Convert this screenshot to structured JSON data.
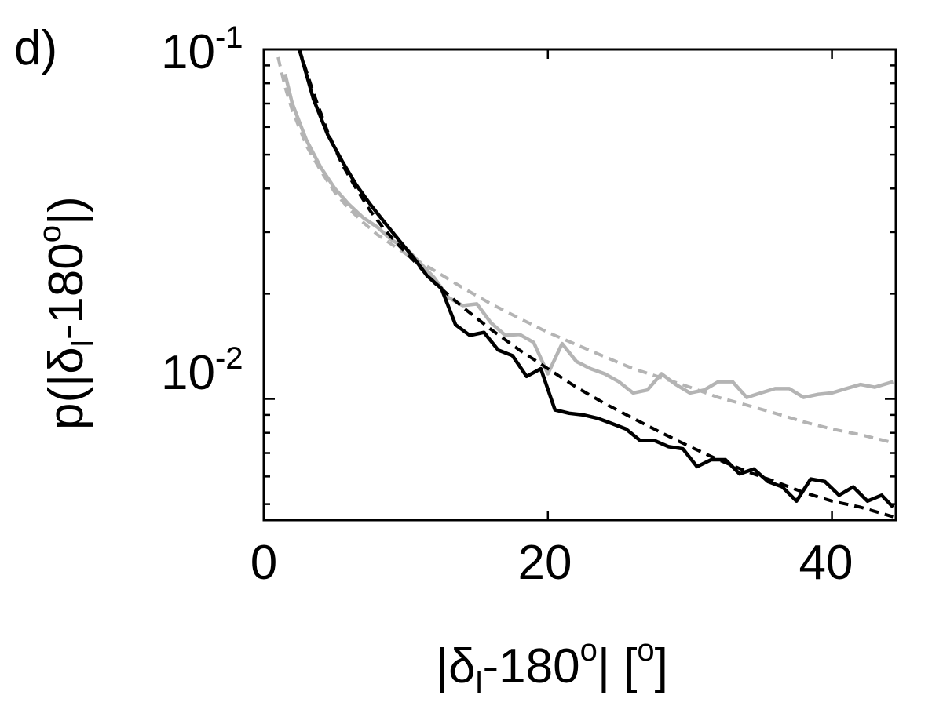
{
  "panel_label": "d)",
  "chart_data": {
    "type": "line",
    "xlabel": {
      "pre": "|δ",
      "sub": "l",
      "mid": "-180",
      "sup": "o",
      "post": "| [",
      "sup2": "o",
      "end": "]"
    },
    "ylabel": {
      "pre": "p(|δ",
      "sub": "l",
      "mid": "-180",
      "sup": "o",
      "end": "|)"
    },
    "xlim": [
      0,
      44.5
    ],
    "ylim": [
      0.0045,
      0.1
    ],
    "yscale": "log",
    "grid": false,
    "x_ticks": [
      {
        "value": 0,
        "label": "0"
      },
      {
        "value": 20,
        "label": "20"
      },
      {
        "value": 40,
        "label": "40"
      }
    ],
    "y_ticks": [
      {
        "value": 0.1,
        "base": "10",
        "exp": "-1"
      },
      {
        "value": 0.01,
        "base": "10",
        "exp": "-2"
      }
    ],
    "y_minor_ticks": [
      0.005,
      0.006,
      0.007,
      0.008,
      0.009,
      0.02,
      0.03,
      0.04,
      0.05,
      0.06,
      0.07,
      0.08,
      0.09
    ],
    "series": [
      {
        "color": "#000000",
        "style": "solid",
        "x": [
          2.5,
          3.5,
          4.5,
          5.5,
          6.5,
          7.5,
          8.5,
          9.5,
          10.5,
          11.5,
          12.5,
          13.5,
          14.5,
          15.5,
          16.5,
          17.5,
          18.5,
          19.5,
          20.5,
          21.5,
          22.5,
          23.5,
          24.5,
          25.5,
          26.5,
          27.5,
          28.5,
          29.5,
          30.5,
          31.5,
          32.5,
          33.5,
          34.5,
          35.5,
          36.5,
          37.5,
          38.5,
          39.5,
          40.5,
          41.5,
          42.5,
          43.5,
          44.3
        ],
        "y": [
          0.1,
          0.072,
          0.057,
          0.048,
          0.041,
          0.036,
          0.032,
          0.0285,
          0.0255,
          0.0225,
          0.0207,
          0.0163,
          0.0152,
          0.0155,
          0.0138,
          0.0133,
          0.0116,
          0.0122,
          0.0093,
          0.0091,
          0.009,
          0.0088,
          0.0085,
          0.0082,
          0.0076,
          0.0076,
          0.0073,
          0.0072,
          0.0064,
          0.0067,
          0.0067,
          0.0061,
          0.0063,
          0.0058,
          0.0056,
          0.0051,
          0.0059,
          0.0058,
          0.0053,
          0.0056,
          0.0051,
          0.0053,
          0.0049
        ]
      },
      {
        "color": "#000000",
        "style": "dashed",
        "x": [
          2.5,
          3.5,
          4.5,
          5.5,
          6.5,
          7.5,
          8.5,
          9.5,
          10.5,
          12,
          14,
          16,
          18,
          20,
          22,
          24,
          26,
          28,
          30,
          32,
          34,
          36,
          38,
          40,
          42,
          44.3
        ],
        "y": [
          0.1,
          0.075,
          0.058,
          0.047,
          0.04,
          0.0345,
          0.0305,
          0.0275,
          0.025,
          0.0215,
          0.0183,
          0.0158,
          0.0138,
          0.0122,
          0.0108,
          0.0097,
          0.0088,
          0.008,
          0.0073,
          0.0067,
          0.0062,
          0.0058,
          0.0054,
          0.0051,
          0.0049,
          0.0046
        ]
      },
      {
        "color": "#b4b4b4",
        "style": "solid",
        "x": [
          1.5,
          2,
          3,
          4,
          5,
          6,
          7,
          8,
          9,
          10,
          11,
          12,
          13,
          14,
          15,
          16,
          17,
          18,
          19,
          20,
          21,
          22,
          23,
          24,
          25,
          26,
          27,
          28,
          29,
          30,
          31,
          32,
          33,
          34,
          35,
          36,
          37,
          38,
          39,
          40,
          41,
          42,
          43,
          44.3
        ],
        "y": [
          0.085,
          0.07,
          0.055,
          0.046,
          0.04,
          0.036,
          0.033,
          0.031,
          0.0285,
          0.027,
          0.0245,
          0.0222,
          0.0195,
          0.0185,
          0.0187,
          0.0165,
          0.0152,
          0.0153,
          0.0145,
          0.0118,
          0.0144,
          0.0128,
          0.0122,
          0.0118,
          0.0112,
          0.0104,
          0.0106,
          0.0118,
          0.011,
          0.0104,
          0.0106,
          0.0112,
          0.0112,
          0.0101,
          0.0104,
          0.0107,
          0.0107,
          0.0101,
          0.0103,
          0.0104,
          0.0107,
          0.011,
          0.0108,
          0.0112
        ]
      },
      {
        "color": "#b4b4b4",
        "style": "dashed",
        "x": [
          1,
          1.5,
          2,
          3,
          4,
          5,
          6,
          7,
          8,
          10,
          12,
          14,
          16,
          18,
          20,
          22,
          24,
          26,
          28,
          30,
          32,
          34,
          36,
          38,
          40,
          42,
          44.3
        ],
        "y": [
          0.095,
          0.078,
          0.067,
          0.053,
          0.045,
          0.039,
          0.035,
          0.032,
          0.0295,
          0.026,
          0.0233,
          0.0208,
          0.0187,
          0.017,
          0.0155,
          0.0143,
          0.0132,
          0.0122,
          0.0115,
          0.0108,
          0.0101,
          0.0096,
          0.0091,
          0.0086,
          0.0082,
          0.0079,
          0.0075
        ]
      }
    ]
  }
}
